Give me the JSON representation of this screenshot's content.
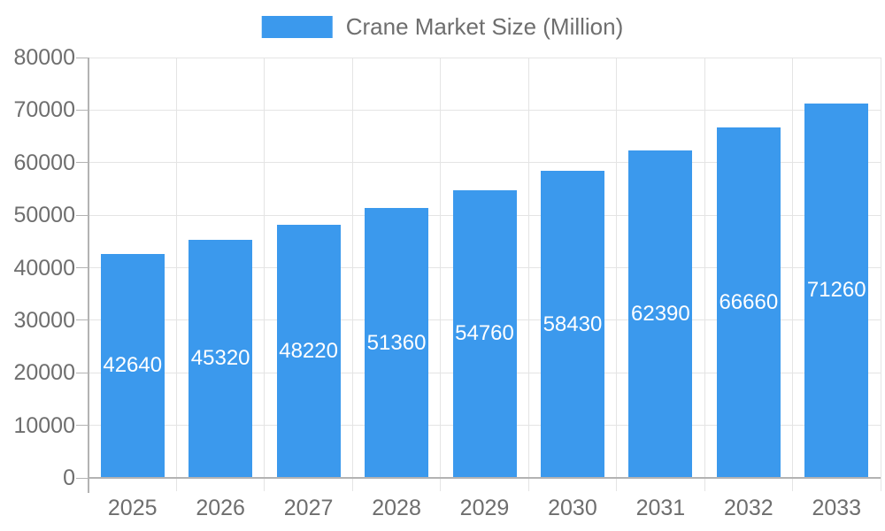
{
  "legend": {
    "label": "Crane Market Size (Million)"
  },
  "colors": {
    "bar": "#3b99ed",
    "grid": "#e4e4e4",
    "axis": "#b3b3b3",
    "text": "#6e6e6e",
    "bar_label": "#ffffff"
  },
  "chart_data": {
    "type": "bar",
    "title": "Crane Market Size (Million)",
    "categories": [
      "2025",
      "2026",
      "2027",
      "2028",
      "2029",
      "2030",
      "2031",
      "2032",
      "2033"
    ],
    "values": [
      42640,
      45320,
      48220,
      51360,
      54760,
      58430,
      62390,
      66660,
      71260
    ],
    "xlabel": "",
    "ylabel": "",
    "ylim": [
      0,
      80000
    ],
    "ytick_step": 10000,
    "ytick_labels": [
      "0",
      "10000",
      "20000",
      "30000",
      "40000",
      "50000",
      "60000",
      "70000",
      "80000"
    ],
    "grid": true,
    "legend_position": "top-center",
    "bar_label_position": "inside-center",
    "bar_label_color": "#ffffff"
  }
}
